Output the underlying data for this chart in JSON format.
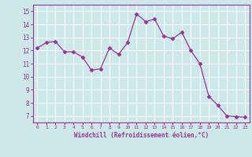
{
  "x": [
    0,
    1,
    2,
    3,
    4,
    5,
    6,
    7,
    8,
    9,
    10,
    11,
    12,
    13,
    14,
    15,
    16,
    17,
    18,
    19,
    20,
    21,
    22,
    23
  ],
  "y": [
    12.2,
    12.6,
    12.7,
    11.9,
    11.9,
    11.5,
    10.5,
    10.6,
    12.2,
    11.7,
    12.6,
    14.8,
    14.2,
    14.4,
    13.1,
    12.9,
    13.4,
    12.0,
    11.0,
    8.5,
    7.8,
    7.0,
    6.95,
    6.9
  ],
  "line_color": "#993399",
  "marker": "D",
  "marker_size": 2.5,
  "bg_color": "#cce8e8",
  "grid_color": "#ffffff",
  "xlabel": "Windchill (Refroidissement éolien,°C)",
  "yticks": [
    7,
    8,
    9,
    10,
    11,
    12,
    13,
    14,
    15
  ],
  "ylim": [
    6.5,
    15.5
  ],
  "xlim": [
    -0.5,
    23.5
  ],
  "tick_color": "#993399",
  "label_color": "#993399"
}
